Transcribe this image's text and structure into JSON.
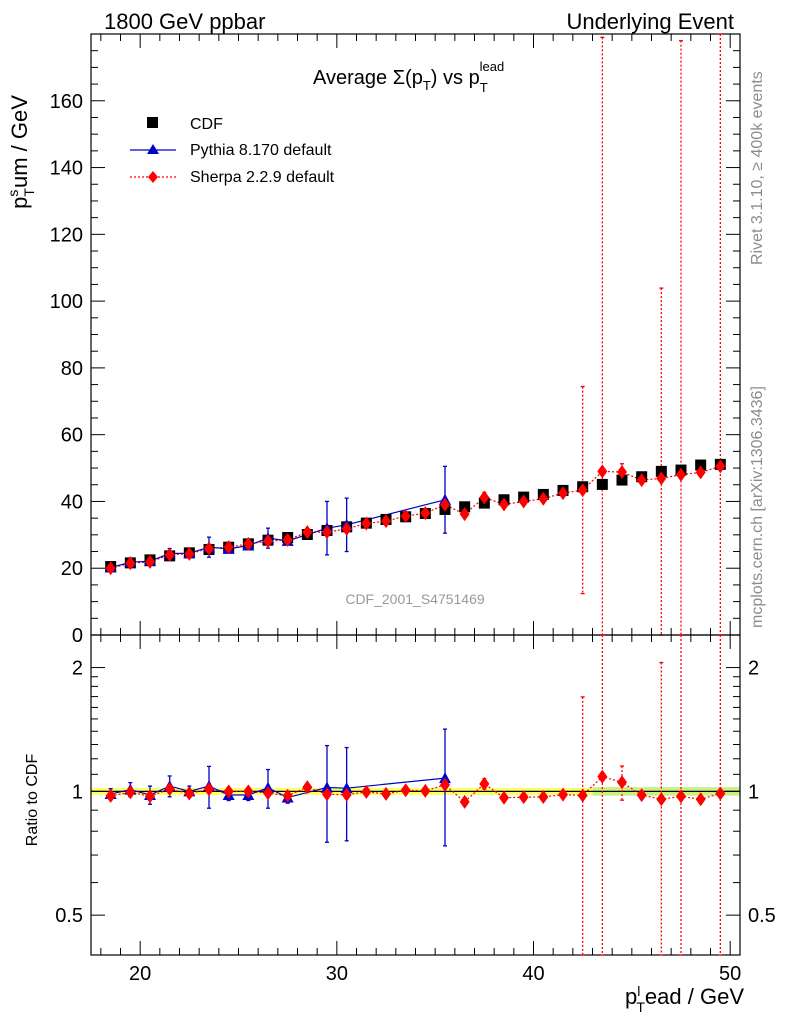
{
  "header": {
    "left": "1800 GeV ppbar",
    "right": "Underlying Event"
  },
  "side_text": {
    "upper": "Rivet 3.1.10, ≥ 400k events",
    "lower": "mcplots.cern.ch [arXiv:1306.3436]"
  },
  "watermark": "CDF_2001_S4751469",
  "colors": {
    "cdf": "#000000",
    "pythia": "#0000cc",
    "sherpa": "#ff0000",
    "band_yellow": "#ffff66",
    "band_green": "#b8e986"
  },
  "chart_data": [
    {
      "type": "scatter",
      "panel": "main",
      "title": {
        "base": "Average ",
        "sigma": "Σ(p",
        "sigma_sub": "T",
        "close": ")",
        "vs": " vs p",
        "vs_sub": "T",
        "vs_sup": "lead"
      },
      "ylabel": {
        "base": "p",
        "sup": "s",
        "sub": "T",
        "rest": "um / GeV"
      },
      "xlim": [
        17.5,
        50.5
      ],
      "ylim": [
        0,
        180
      ],
      "yticks": [
        0,
        20,
        40,
        60,
        80,
        100,
        120,
        140,
        160
      ],
      "legend": {
        "position": "top-left"
      },
      "series": [
        {
          "name": "CDF",
          "marker": "square",
          "x": [
            18.5,
            19.5,
            20.5,
            21.5,
            22.5,
            23.5,
            24.5,
            25.5,
            26.5,
            27.5,
            28.5,
            29.5,
            30.5,
            31.5,
            32.5,
            33.5,
            34.5,
            35.5,
            36.5,
            37.5,
            38.5,
            39.5,
            40.5,
            41.5,
            42.5,
            43.5,
            44.5,
            45.5,
            46.5,
            47.5,
            48.5,
            49.5
          ],
          "y": [
            20.5,
            21.6,
            22.5,
            23.7,
            24.6,
            25.6,
            26.3,
            27.3,
            28.4,
            29.2,
            30.1,
            31.3,
            32.4,
            33.5,
            34.6,
            35.4,
            36.4,
            37.6,
            38.4,
            39.5,
            40.5,
            41.3,
            42.1,
            43.3,
            44.4,
            45.1,
            46.4,
            47.4,
            49.0,
            49.4,
            50.9,
            51.1
          ]
        },
        {
          "name": "Pythia 8.170 default",
          "marker": "triangle",
          "x": [
            18.5,
            19.5,
            20.5,
            21.5,
            22.5,
            23.5,
            24.5,
            25.5,
            26.5,
            27.5,
            29.5,
            30.5,
            35.5
          ],
          "y": [
            20.2,
            21.8,
            22.1,
            24.4,
            24.5,
            26.3,
            25.8,
            26.8,
            29.0,
            28.2,
            32.0,
            33.0,
            40.5
          ],
          "err": [
            0.8,
            1.0,
            1.2,
            1.5,
            0.8,
            3.0,
            1.0,
            0.8,
            3.0,
            1.0,
            8.0,
            8.0,
            10.0
          ]
        },
        {
          "name": "Sherpa 2.2.9 default",
          "marker": "diamond",
          "x": [
            18.5,
            19.5,
            20.5,
            21.5,
            22.5,
            23.5,
            24.5,
            25.5,
            26.5,
            27.5,
            28.5,
            29.5,
            30.5,
            31.5,
            32.5,
            33.5,
            34.5,
            35.5,
            36.5,
            37.5,
            38.5,
            39.5,
            40.5,
            41.5,
            42.5,
            43.5,
            44.5,
            45.5,
            46.5,
            47.5,
            48.5,
            49.5
          ],
          "y": [
            20.0,
            21.5,
            21.9,
            24.0,
            24.3,
            25.9,
            26.3,
            27.3,
            28.1,
            28.5,
            30.8,
            30.8,
            31.8,
            33.4,
            34.1,
            35.6,
            36.5,
            39.0,
            36.2,
            41.2,
            39.1,
            40.0,
            40.8,
            42.5,
            43.4,
            49.0,
            48.8,
            46.4,
            46.9,
            48.0,
            48.7,
            50.5
          ],
          "err": [
            0.5,
            0.5,
            0.5,
            0.5,
            0.5,
            0.5,
            0.5,
            0.5,
            0.5,
            0.5,
            0.6,
            0.6,
            0.6,
            0.6,
            0.6,
            0.6,
            0.6,
            0.8,
            1.0,
            1.5,
            1.0,
            1.0,
            1.0,
            1.0,
            31.0,
            130.0,
            2.5,
            1.0,
            57.0,
            130.0,
            1.0,
            130.0
          ]
        }
      ]
    },
    {
      "type": "scatter",
      "panel": "ratio",
      "ylabel": "Ratio to CDF",
      "xlabel": {
        "base": "p",
        "sup": "l",
        "sub": "T",
        "rest": "ead / GeV"
      },
      "xlim": [
        17.5,
        50.5
      ],
      "ylim": [
        0.4,
        2.4
      ],
      "log_y": true,
      "yticks": [
        0.5,
        1,
        2
      ],
      "xticks": [
        20,
        30,
        40,
        50
      ],
      "series": [
        {
          "name": "Pythia 8.170 default",
          "x": [
            18.5,
            19.5,
            20.5,
            21.5,
            22.5,
            23.5,
            24.5,
            25.5,
            26.5,
            27.5,
            29.5,
            30.5,
            35.5
          ],
          "y": [
            0.985,
            1.01,
            0.98,
            1.03,
            1.0,
            1.03,
            0.98,
            0.98,
            1.02,
            0.966,
            1.022,
            1.018,
            1.077
          ],
          "err": [
            0.03,
            0.04,
            0.05,
            0.06,
            0.03,
            0.12,
            0.03,
            0.03,
            0.11,
            0.03,
            0.27,
            0.26,
            0.34
          ]
        },
        {
          "name": "Sherpa 2.2.9 default",
          "x": [
            18.5,
            19.5,
            20.5,
            21.5,
            22.5,
            23.5,
            24.5,
            25.5,
            26.5,
            27.5,
            28.5,
            29.5,
            30.5,
            31.5,
            32.5,
            33.5,
            34.5,
            35.5,
            36.5,
            37.5,
            38.5,
            39.5,
            40.5,
            41.5,
            42.5,
            43.5,
            44.5,
            45.5,
            46.5,
            47.5,
            48.5,
            49.5
          ],
          "y": [
            0.975,
            0.995,
            0.973,
            1.013,
            0.988,
            1.012,
            1.0,
            1.0,
            0.99,
            0.976,
            1.023,
            0.984,
            0.981,
            0.997,
            0.986,
            1.006,
            1.003,
            1.037,
            0.943,
            1.043,
            0.965,
            0.968,
            0.969,
            0.982,
            0.977,
            1.086,
            1.052,
            0.979,
            0.957,
            0.972,
            0.957,
            0.988
          ],
          "err": [
            0.02,
            0.02,
            0.02,
            0.02,
            0.02,
            0.02,
            0.02,
            0.02,
            0.02,
            0.02,
            0.02,
            0.02,
            0.02,
            0.02,
            0.02,
            0.02,
            0.02,
            0.02,
            0.02,
            0.03,
            0.02,
            0.02,
            0.02,
            0.02,
            0.72,
            2.0,
            0.1,
            0.02,
            1.1,
            2.0,
            0.02,
            2.0
          ]
        }
      ]
    }
  ]
}
